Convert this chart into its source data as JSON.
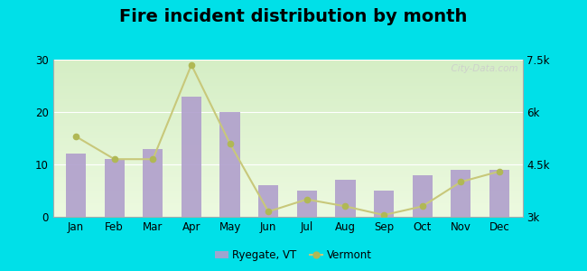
{
  "title": "Fire incident distribution by month",
  "months": [
    "Jan",
    "Feb",
    "Mar",
    "Apr",
    "May",
    "Jun",
    "Jul",
    "Aug",
    "Sep",
    "Oct",
    "Nov",
    "Dec"
  ],
  "ryegate_values": [
    12,
    11,
    13,
    23,
    20,
    6,
    5,
    7,
    5,
    8,
    9,
    9
  ],
  "vermont_values": [
    5300,
    4650,
    4650,
    7350,
    5100,
    3150,
    3500,
    3300,
    3050,
    3300,
    4000,
    4300
  ],
  "bar_color": "#b09fcc",
  "line_color": "#c8c87a",
  "marker_color": "#b0b855",
  "left_ylim": [
    0,
    30
  ],
  "left_yticks": [
    0,
    10,
    20,
    30
  ],
  "right_ylim": [
    3000,
    7500
  ],
  "right_yticks": [
    3000,
    4500,
    6000,
    7500
  ],
  "right_yticklabels": [
    "3k",
    "4.5k",
    "6k",
    "7.5k"
  ],
  "bg_color_top": "#d5eec5",
  "bg_color_bottom": "#edfae0",
  "outer_background": "#00e0e8",
  "title_fontsize": 14,
  "watermark_text": "  City-Data.com",
  "legend_label1": "Ryegate, VT",
  "legend_label2": "Vermont"
}
